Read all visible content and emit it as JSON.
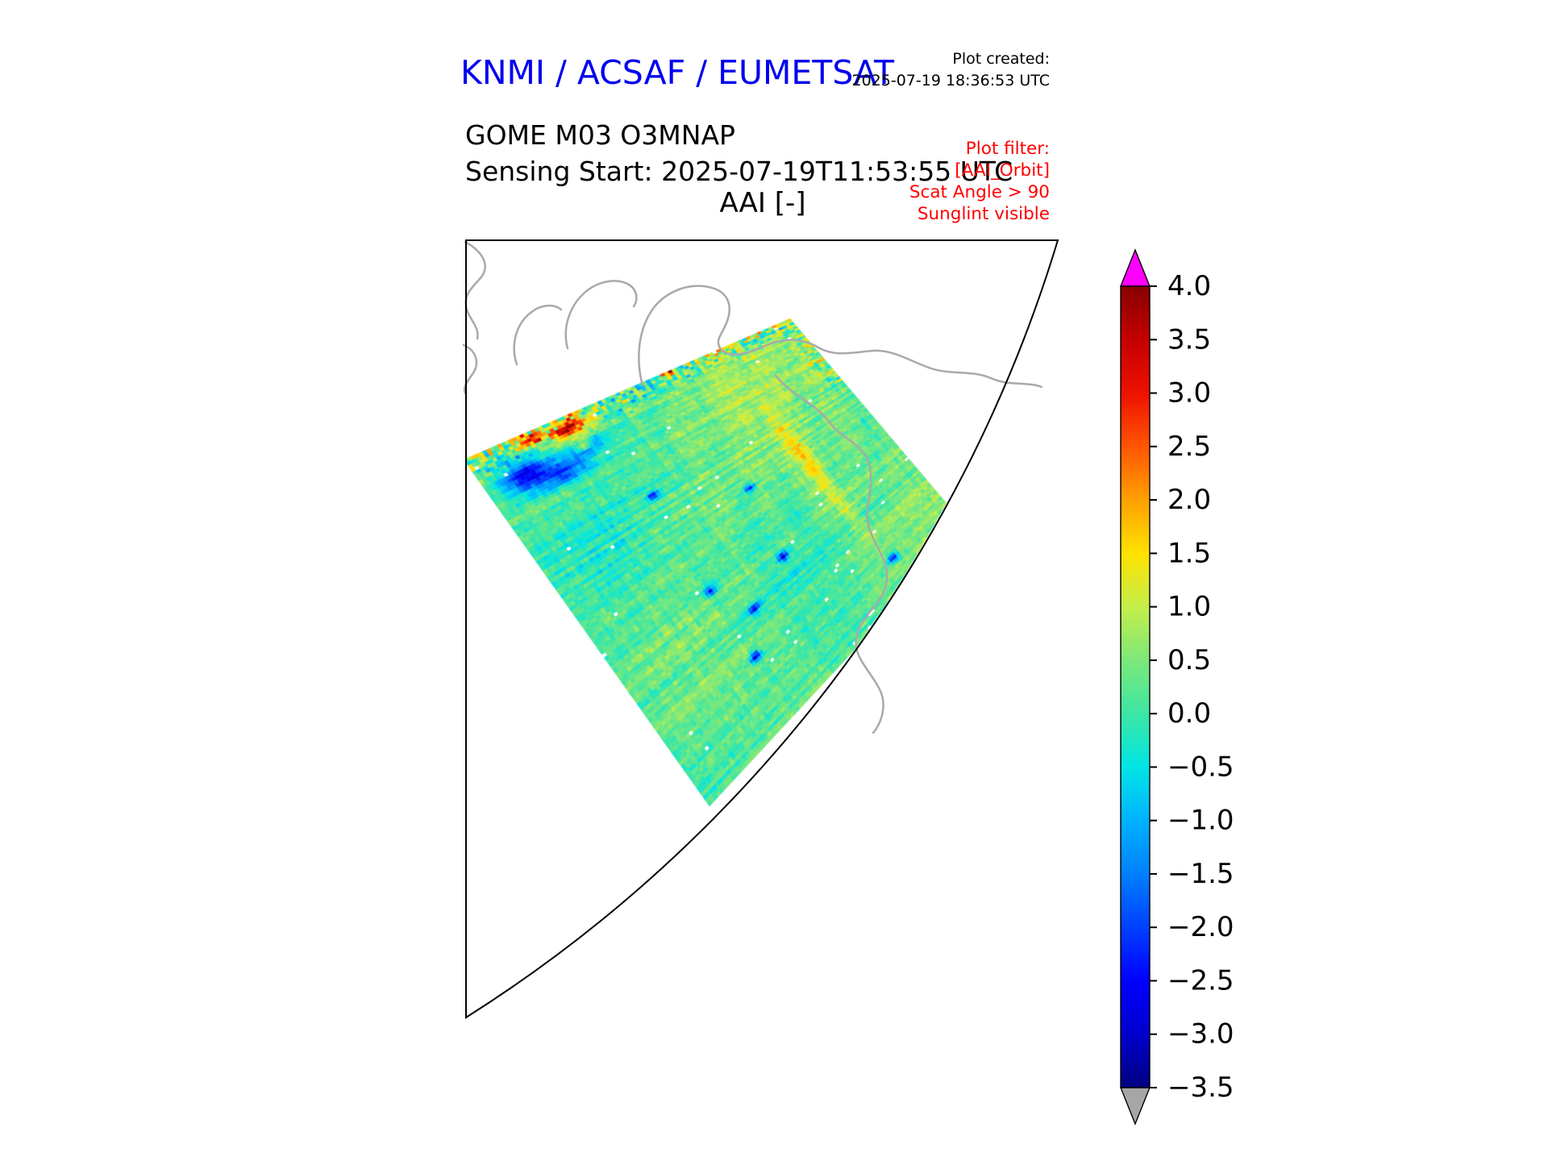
{
  "header": {
    "title": "KNMI / ACSAF / EUMETSAT",
    "created_label": "Plot created:",
    "created_value": "2025-07-19 18:36:53 UTC",
    "product": "GOME M03 O3MNAP",
    "sensing": "Sensing Start: 2025-07-19T11:53:55 UTC",
    "map_title": "AAI [-]",
    "filter": {
      "line1": "Plot filter:",
      "line2": "[AAI_Orbit]",
      "line3": "Scat Angle > 90",
      "line4": "Sunglint visible"
    }
  },
  "colors": {
    "title": "#0000ee",
    "filter": "#ff0000",
    "coastline": "#a9a9a9",
    "map_border": "#000000",
    "over_arrow": "#ff00ff",
    "under_arrow": "#a6a6a6"
  },
  "chart_data": {
    "type": "heatmap",
    "title": "AAI [-]",
    "quantity": "AAI",
    "units": "[-]",
    "colorbar": {
      "vmin": -3.5,
      "vmax": 4.0,
      "ticks": [
        4.0,
        3.5,
        3.0,
        2.5,
        2.0,
        1.5,
        1.0,
        0.5,
        0.0,
        -0.5,
        -1.0,
        -1.5,
        -2.0,
        -2.5,
        -3.0,
        -3.5
      ],
      "tick_labels": [
        "4.0",
        "3.5",
        "3.0",
        "2.5",
        "2.0",
        "1.5",
        "1.0",
        "0.5",
        "0.0",
        "−0.5",
        "−1.0",
        "−1.5",
        "−2.0",
        "−2.5",
        "−3.0",
        "−3.5"
      ],
      "over_color": "#ff00ff",
      "under_color": "#a6a6a6",
      "orientation": "vertical",
      "position": "right"
    },
    "colormap_stops": [
      {
        "value": -3.5,
        "color": "#000080"
      },
      {
        "value": -3.0,
        "color": "#0000cd"
      },
      {
        "value": -2.5,
        "color": "#0000ff"
      },
      {
        "value": -2.0,
        "color": "#0040ff"
      },
      {
        "value": -1.5,
        "color": "#0080ff"
      },
      {
        "value": -1.0,
        "color": "#00b2ff"
      },
      {
        "value": -0.5,
        "color": "#00e5e5"
      },
      {
        "value": 0.0,
        "color": "#3ce6a3"
      },
      {
        "value": 0.5,
        "color": "#7de87a"
      },
      {
        "value": 1.0,
        "color": "#c4ee49"
      },
      {
        "value": 1.5,
        "color": "#ffe100"
      },
      {
        "value": 2.0,
        "color": "#ffa000"
      },
      {
        "value": 2.5,
        "color": "#ff5500"
      },
      {
        "value": 3.0,
        "color": "#ee1100"
      },
      {
        "value": 3.5,
        "color": "#c40000"
      },
      {
        "value": 4.0,
        "color": "#870000"
      }
    ],
    "swath_summary": {
      "description": "Tilted satellite orbit swath of AAI values over a curved polar map sector with gray coastlines; values are mostly between -0.5 and 1.0 (green/cyan), with a strongly speckled band of high and low values (about -3 to +3) along the upper swath edge, a dark blue cluster near -2.5 at the left-center of the swath, small red/orange maxima near +2.5 in the upper-left part, a warm yellow-orange streak near +1.5 running down the right-center, and sparse isolated dark blue pixels elsewhere",
      "typical_value": 0.2,
      "displayed_range": [
        -3.5,
        4.0
      ]
    }
  }
}
